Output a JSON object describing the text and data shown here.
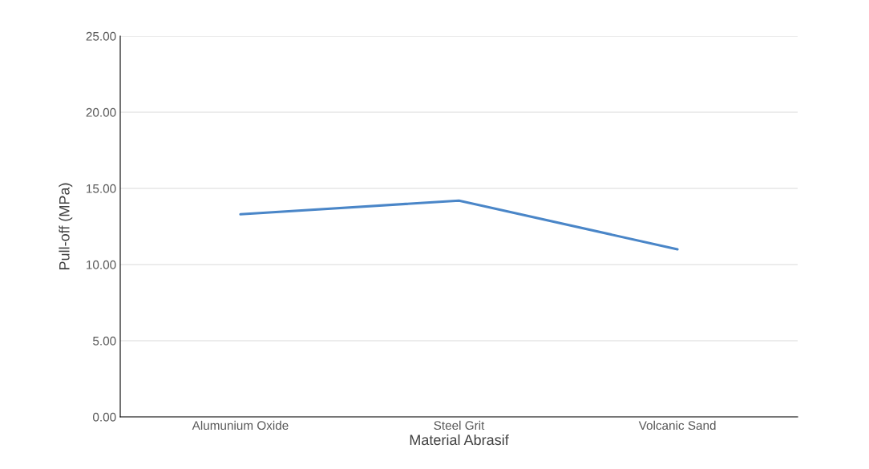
{
  "chart_data": {
    "type": "line",
    "xlabel": "Material Abrasif",
    "ylabel": "Pull-off (MPa)",
    "categories": [
      "Alumunium Oxide",
      "Steel Grit",
      "Volcanic Sand"
    ],
    "series": [
      {
        "color": "#4a86c8",
        "values": [
          13.3,
          14.2,
          11.0
        ]
      }
    ],
    "ylim": [
      0,
      25
    ],
    "yticks": [
      {
        "value": 0,
        "label": "0.00"
      },
      {
        "value": 5,
        "label": "5.00"
      },
      {
        "value": 10,
        "label": "10.00"
      },
      {
        "value": 15,
        "label": "15.00"
      },
      {
        "value": 20,
        "label": "20.00"
      },
      {
        "value": 25,
        "label": "25.00"
      }
    ],
    "grid": "y",
    "marker": "none",
    "line_style": "solid"
  }
}
